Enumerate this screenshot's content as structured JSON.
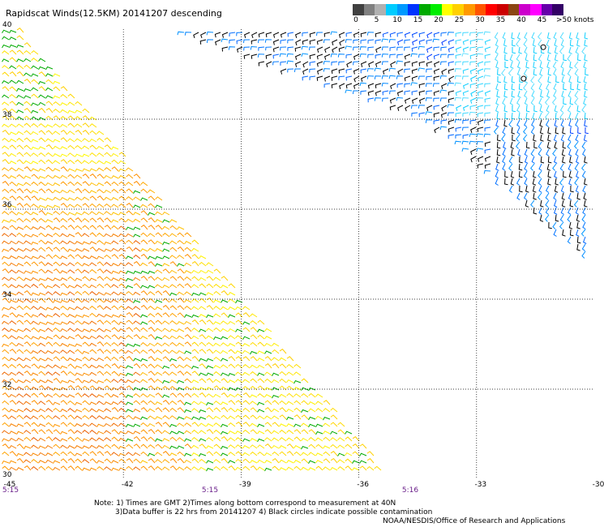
{
  "title": "Rapidscat Winds(12.5KM) 20141207 descending",
  "colorbar": {
    "colors": [
      "#404040",
      "#808080",
      "#b0b0b0",
      "#00ccff",
      "#0099ff",
      "#0033ff",
      "#00aa00",
      "#00ee00",
      "#ffff00",
      "#ffd000",
      "#ff9900",
      "#ff5500",
      "#ff0000",
      "#cc0000",
      "#8b4513",
      "#cc00cc",
      "#ff00ff",
      "#6600aa",
      "#330066"
    ],
    "labels": [
      "0",
      "5",
      "10",
      "15",
      "20",
      "25",
      "30",
      "35",
      "40",
      "45"
    ],
    "unit": ">50 knots"
  },
  "axes": {
    "lat_labels": [
      "40",
      "38",
      "36",
      "34",
      "32",
      "30"
    ],
    "lon_labels": [
      "-45",
      "-42",
      "-39",
      "-36",
      "-33",
      "-30"
    ],
    "time_labels": [
      "5:15",
      "5:15",
      "5:16"
    ]
  },
  "notes": [
    "Note: 1) Times are GMT 2)Times along bottom correspond to measurement at 40N",
    "3)Data buffer is 22 hrs from 20141207 4) Black circles indicate possible contamination",
    "NOAA/NESDIS/Office of Research and Applications"
  ],
  "map_data": {
    "region": {
      "lon_min": -45,
      "lon_max": -30,
      "lat_min": 30,
      "lat_max": 40
    },
    "swaths": [
      {
        "name": "west",
        "polygon_lonlat": [
          [
            -45,
            40
          ],
          [
            -44.6,
            40
          ],
          [
            -35.3,
            30.2
          ],
          [
            -45,
            30
          ]
        ]
      },
      {
        "name": "east",
        "polygon_lonlat": [
          [
            -40.8,
            40
          ],
          [
            -30,
            40
          ],
          [
            -30,
            34.8
          ],
          [
            -34.2,
            38
          ]
        ]
      }
    ],
    "speed_knots_by_area": [
      {
        "area": "northeast swath top",
        "range": "10-20"
      },
      {
        "area": "northeast swath lower edge",
        "range": "0-20"
      },
      {
        "area": "west swath north",
        "range": "15-25"
      },
      {
        "area": "west swath center",
        "range": "20-25"
      },
      {
        "area": "west swath southwest",
        "range": "25-35"
      }
    ],
    "contamination_circles": 2
  }
}
